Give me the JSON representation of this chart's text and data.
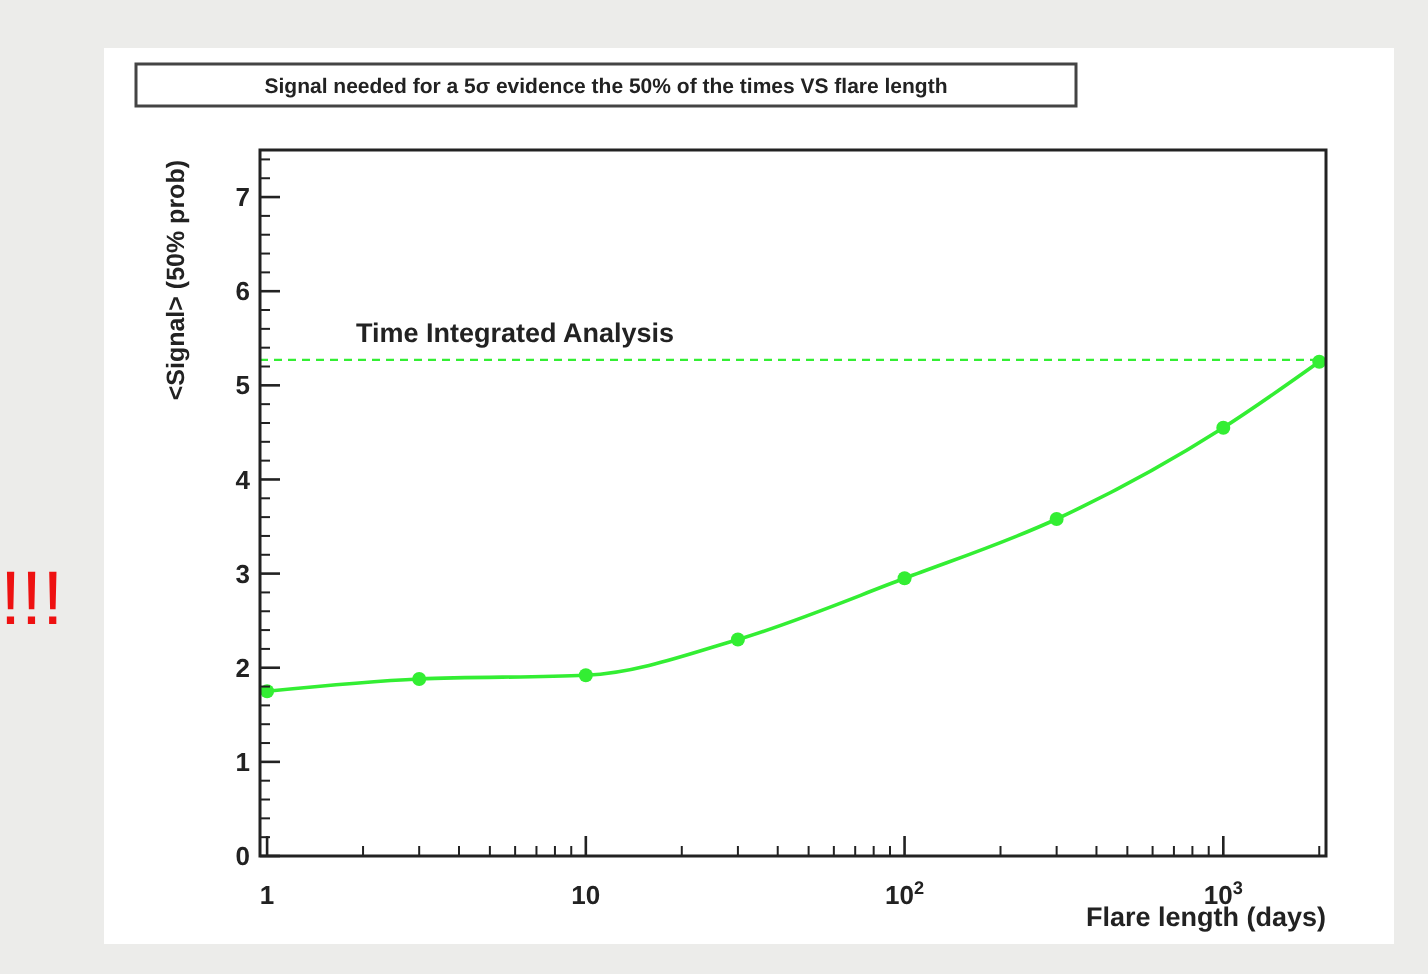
{
  "chart_data": {
    "type": "line",
    "title": "Signal needed for a 5σ evidence the 50% of the times VS flare length",
    "xlabel": "Flare length (days)",
    "ylabel": "<Signal> (50% prob)",
    "x": [
      1,
      3,
      10,
      30,
      100,
      300,
      1000,
      2000
    ],
    "series": [
      {
        "color": "#33ee33",
        "values": [
          1.75,
          1.88,
          1.92,
          2.3,
          2.95,
          3.58,
          4.55,
          5.25
        ]
      }
    ],
    "log": "x",
    "xlim": [
      0.95,
      2100
    ],
    "xticks": [
      1,
      10,
      {
        "value": 100,
        "label": "10$^{2}$"
      },
      {
        "value": 1000,
        "label": "10$^{3}$"
      }
    ],
    "ylim": [
      0,
      7.5
    ],
    "yticks": [
      0,
      1,
      2,
      3,
      4,
      5,
      6,
      7
    ],
    "marker": "circle",
    "line_style": "solid",
    "ref_lines": [
      {
        "axis": "y",
        "value": 5.27,
        "label": "Time Integrated Analysis",
        "color": "#33ee33",
        "line_style": "dashed"
      }
    ],
    "annotations": [
      "!!!"
    ]
  }
}
